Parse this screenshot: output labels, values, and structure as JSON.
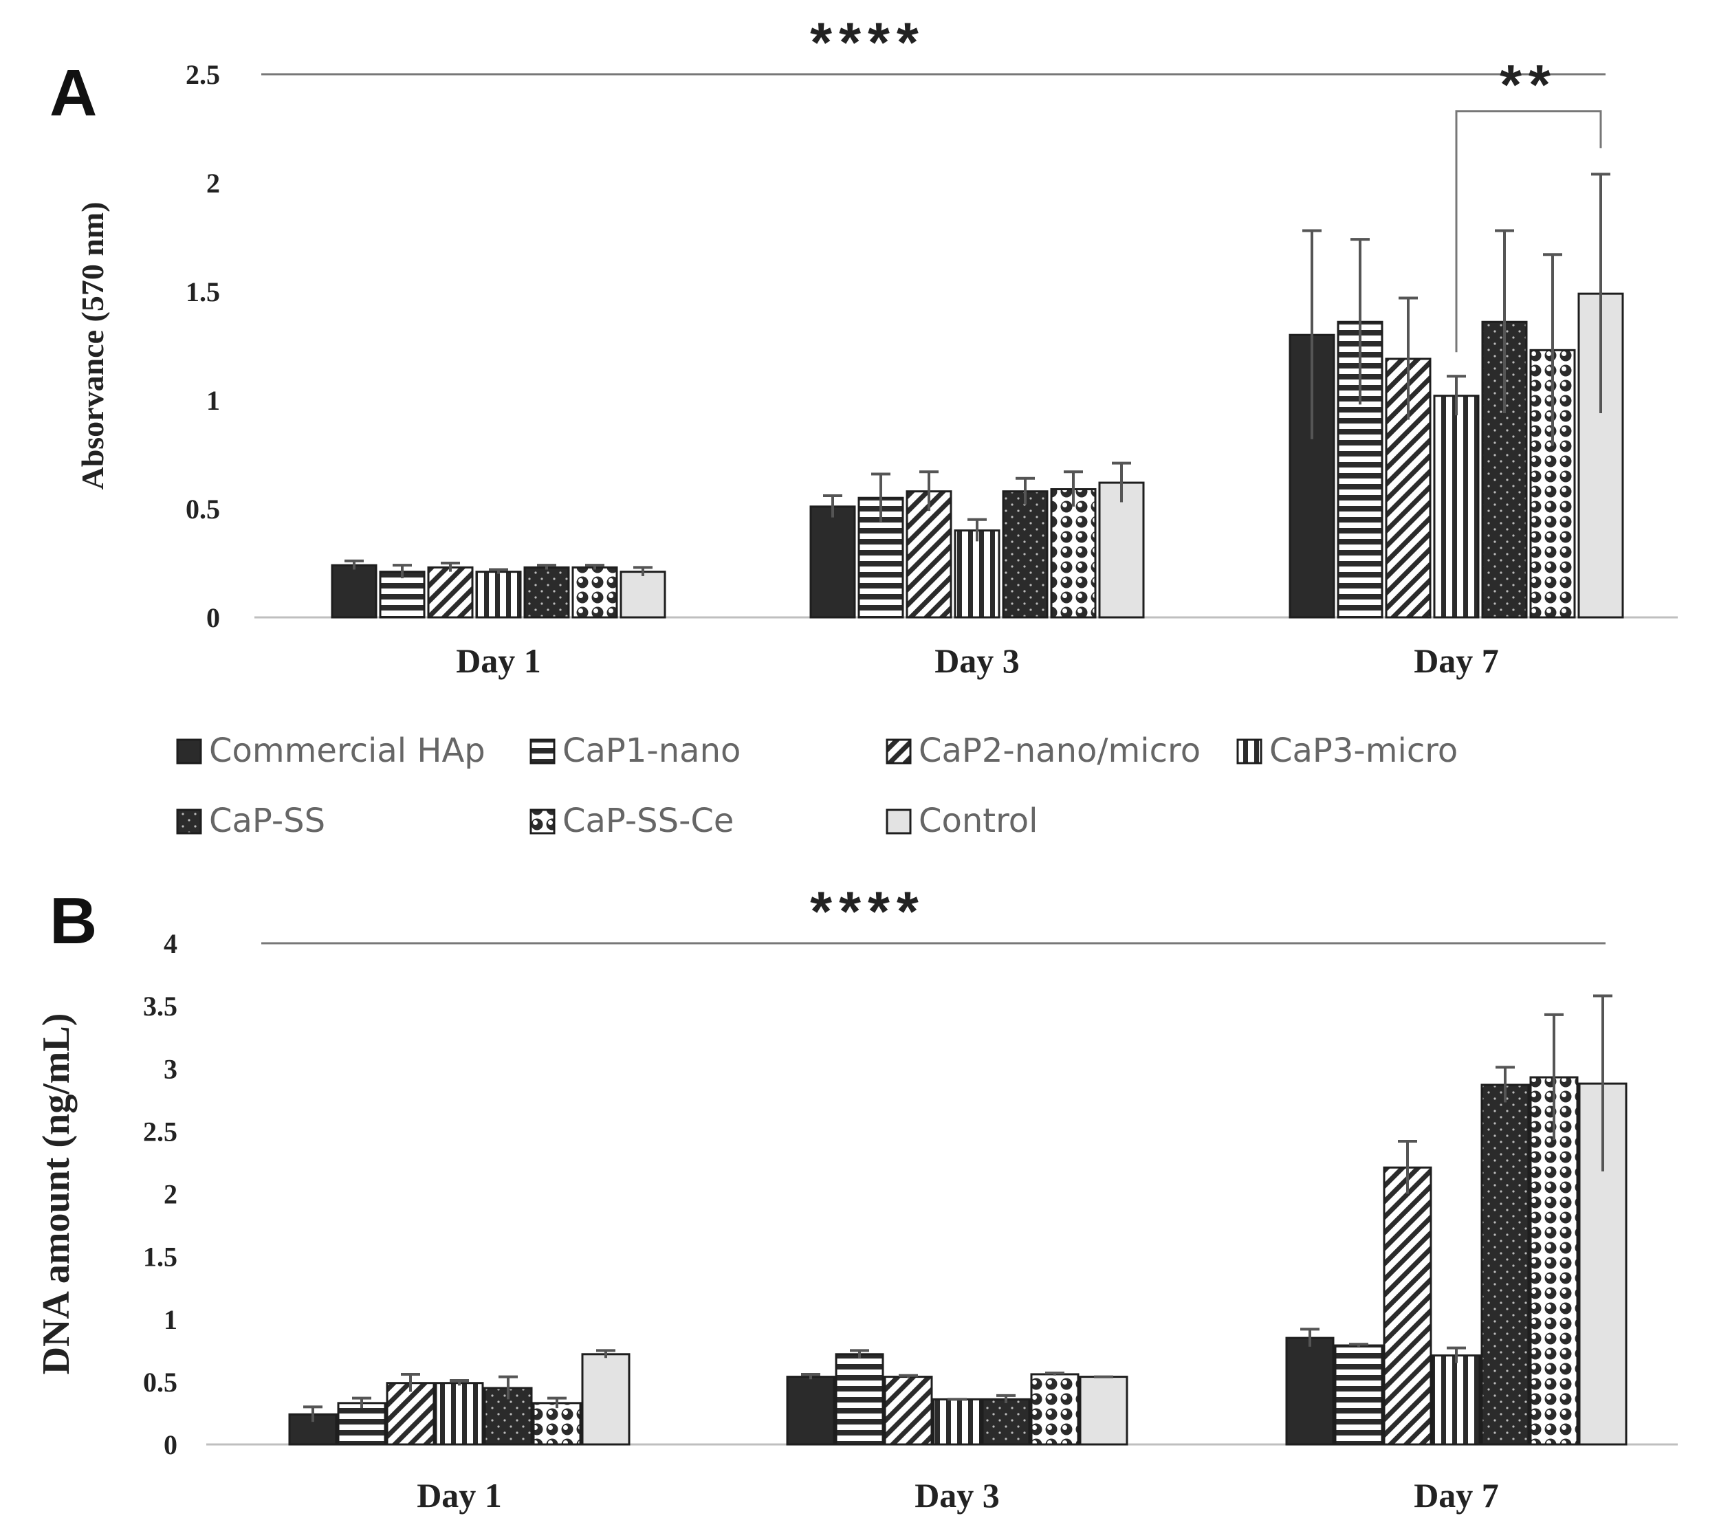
{
  "colors": {
    "dark": "#2b2b2b",
    "white": "#ffffff",
    "light": "#e3e3e3",
    "err": "#555555",
    "axis": "#bfbfbf",
    "sigline": "#777777"
  },
  "legend": [
    {
      "label": "Commercial HAp",
      "pattern": "solid"
    },
    {
      "label": "CaP1-nano",
      "pattern": "hstripes"
    },
    {
      "label": "CaP2-nano/micro",
      "pattern": "diag"
    },
    {
      "label": "CaP3-micro",
      "pattern": "vstripes"
    },
    {
      "label": "CaP-SS",
      "pattern": "dots"
    },
    {
      "label": "CaP-SS-Ce",
      "pattern": "circles"
    },
    {
      "label": "Control",
      "pattern": "light"
    }
  ],
  "chart_data": [
    {
      "type": "bar",
      "panel_label": "A",
      "title": "",
      "xlabel": "",
      "ylabel": "Absorvance (570 nm)",
      "ylim": [
        0,
        2.5
      ],
      "yticks": [
        "0",
        "0.5",
        "1",
        "1.5",
        "2",
        "2.5"
      ],
      "categories": [
        "Day 1",
        "Day 3",
        "Day 7"
      ],
      "series": [
        {
          "name": "Commercial HAp",
          "values": [
            0.24,
            0.51,
            1.3
          ],
          "errors": [
            0.02,
            0.05,
            0.48
          ]
        },
        {
          "name": "CaP1-nano",
          "values": [
            0.21,
            0.55,
            1.36
          ],
          "errors": [
            0.03,
            0.11,
            0.38
          ]
        },
        {
          "name": "CaP2-nano/micro",
          "values": [
            0.23,
            0.58,
            1.19
          ],
          "errors": [
            0.02,
            0.09,
            0.28
          ]
        },
        {
          "name": "CaP3-micro",
          "values": [
            0.21,
            0.4,
            1.02
          ],
          "errors": [
            0.01,
            0.05,
            0.09
          ]
        },
        {
          "name": "CaP-SS",
          "values": [
            0.23,
            0.58,
            1.36
          ],
          "errors": [
            0.01,
            0.06,
            0.42
          ]
        },
        {
          "name": "CaP-SS-Ce",
          "values": [
            0.23,
            0.59,
            1.23
          ],
          "errors": [
            0.01,
            0.08,
            0.44
          ]
        },
        {
          "name": "Control",
          "values": [
            0.21,
            0.62,
            1.49
          ],
          "errors": [
            0.02,
            0.09,
            0.55
          ]
        }
      ],
      "annotations": [
        {
          "text": "****",
          "from": "Day 1",
          "to": "Day 7",
          "level": 2.5
        },
        {
          "text": "**",
          "from": "CaP3-micro @ Day 7",
          "to": "Control @ Day 7",
          "level": 2.33
        }
      ]
    },
    {
      "type": "bar",
      "panel_label": "B",
      "title": "",
      "xlabel": "",
      "ylabel": "DNA amount (ng/mL)",
      "ylim": [
        0,
        4
      ],
      "yticks": [
        "0",
        "0.5",
        "1",
        "1.5",
        "2",
        "2.5",
        "3",
        "3.5",
        "4"
      ],
      "categories": [
        "Day 1",
        "Day 3",
        "Day 7"
      ],
      "series": [
        {
          "name": "Commercial HAp",
          "values": [
            0.24,
            0.54,
            0.85
          ],
          "errors": [
            0.06,
            0.02,
            0.07
          ]
        },
        {
          "name": "CaP1-nano",
          "values": [
            0.33,
            0.72,
            0.79
          ],
          "errors": [
            0.04,
            0.03,
            0.01
          ]
        },
        {
          "name": "CaP2-nano/micro",
          "values": [
            0.49,
            0.54,
            2.21
          ],
          "errors": [
            0.07,
            0.01,
            0.21
          ]
        },
        {
          "name": "CaP3-micro",
          "values": [
            0.49,
            0.36,
            0.71
          ],
          "errors": [
            0.02,
            0.0,
            0.06
          ]
        },
        {
          "name": "CaP-SS",
          "values": [
            0.45,
            0.36,
            2.87
          ],
          "errors": [
            0.09,
            0.03,
            0.14
          ]
        },
        {
          "name": "CaP-SS-Ce",
          "values": [
            0.33,
            0.56,
            2.93
          ],
          "errors": [
            0.04,
            0.01,
            0.5
          ]
        },
        {
          "name": "Control",
          "values": [
            0.72,
            0.54,
            2.88
          ],
          "errors": [
            0.03,
            0.0,
            0.7
          ]
        }
      ],
      "annotations": [
        {
          "text": "****",
          "from": "Day 1",
          "to": "Day 7",
          "level": 4.0
        }
      ]
    }
  ]
}
